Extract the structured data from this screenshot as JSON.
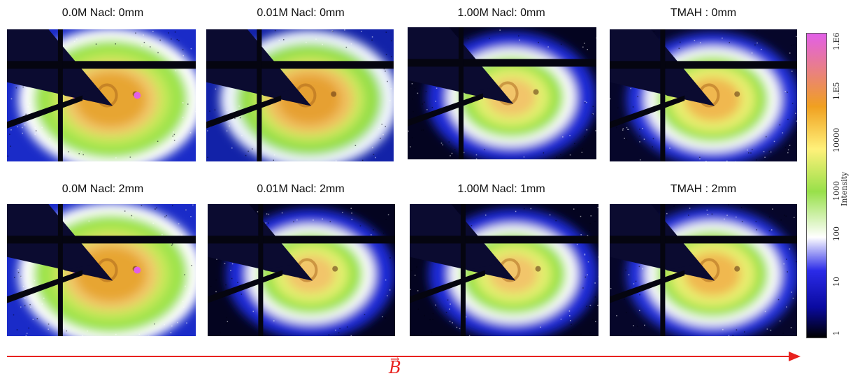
{
  "panels": [
    {
      "title": "0.0M Nacl: 0mm"
    },
    {
      "title": "0.01M Nacl: 0mm"
    },
    {
      "title": "1.00M Nacl: 0mm"
    },
    {
      "title": "TMAH : 0mm"
    },
    {
      "title": "0.0M Nacl: 2mm"
    },
    {
      "title": "0.01M Nacl: 2mm"
    },
    {
      "title": "1.00M Nacl: 1mm"
    },
    {
      "title": "TMAH : 2mm"
    }
  ],
  "colorbar": {
    "label": "Intensity",
    "ticks": [
      "1.E6",
      "1.E5",
      "10000",
      "1000",
      "100",
      "10",
      "1"
    ],
    "colors": [
      "#000000",
      "#0a0aa0",
      "#2b2be8",
      "#ffffff",
      "#98e04a",
      "#fff17a",
      "#f0a020",
      "#e25fe8"
    ]
  },
  "field": {
    "symbol": "B",
    "arrow_symbol": "→",
    "color": "#e8211e"
  }
}
